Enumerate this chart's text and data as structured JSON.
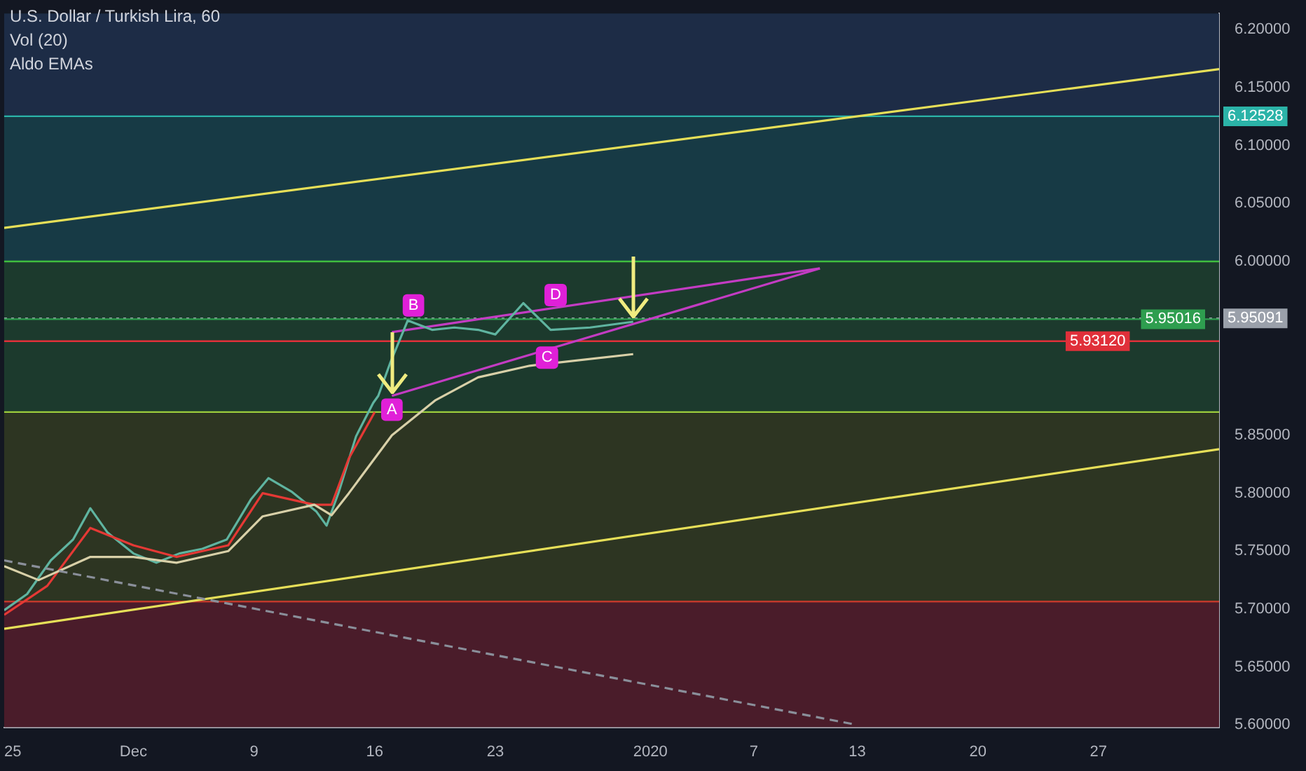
{
  "chart_data": {
    "type": "line",
    "title": "U.S. Dollar / Turkish Lira, 60",
    "annotations": [
      "Vol (20)",
      "Aldo EMAs",
      {
        "text": "A",
        "x": "2019-12-17",
        "y": 5.872
      },
      {
        "text": "B",
        "x": "2019-12-18T06:00",
        "y": 5.962
      },
      {
        "text": "C",
        "x": "2019-12-26",
        "y": 5.917
      },
      {
        "text": "D",
        "x": "2019-12-26T12:00",
        "y": 5.971
      }
    ],
    "xlim": [
      "2019-11-24T12:00",
      "2020-02-03"
    ],
    "xticks": [
      {
        "value": "2019-11-25",
        "label": "25"
      },
      {
        "value": "2019-12-02",
        "label": "Dec"
      },
      {
        "value": "2019-12-09",
        "label": "9"
      },
      {
        "value": "2019-12-16",
        "label": "16"
      },
      {
        "value": "2019-12-23",
        "label": "23"
      },
      {
        "value": "2020-01-01",
        "label": "2020"
      },
      {
        "value": "2020-01-07",
        "label": "7"
      },
      {
        "value": "2020-01-13",
        "label": "13"
      },
      {
        "value": "2020-01-20",
        "label": "20"
      },
      {
        "value": "2020-01-27",
        "label": "27"
      }
    ],
    "ylim": [
      5.598,
      6.214
    ],
    "yticks": [
      {
        "value": 5.6,
        "label": "5.60000"
      },
      {
        "value": 5.65,
        "label": "5.65000"
      },
      {
        "value": 5.7,
        "label": "5.70000"
      },
      {
        "value": 5.75,
        "label": "5.75000"
      },
      {
        "value": 5.8,
        "label": "5.80000"
      },
      {
        "value": 5.85,
        "label": "5.85000"
      },
      {
        "value": 6.0,
        "label": "6.00000"
      },
      {
        "value": 6.05,
        "label": "6.05000"
      },
      {
        "value": 6.1,
        "label": "6.10000"
      },
      {
        "value": 6.15,
        "label": "6.15000"
      },
      {
        "value": 6.2,
        "label": "6.20000"
      }
    ],
    "grid": false,
    "legend": false,
    "marker": "none",
    "bands": [
      {
        "axis": "y",
        "from": 6.12528,
        "to": 6.214,
        "color": "#1d2c46"
      },
      {
        "axis": "y",
        "from": 6.0,
        "to": 6.12528,
        "color": "#173a45"
      },
      {
        "axis": "y",
        "from": 5.87,
        "to": 6.0,
        "color": "#1c3a2d"
      },
      {
        "axis": "y",
        "from": 5.7065,
        "to": 5.87,
        "color": "#2d3522"
      },
      {
        "axis": "y",
        "from": 5.598,
        "to": 5.7065,
        "color": "#4a1c2a"
      }
    ],
    "ref_lines": [
      {
        "axis": "y",
        "value": 6.12528,
        "label": "6.12528",
        "color": "#2bb3a8"
      },
      {
        "axis": "y",
        "value": 6.0,
        "color": "#3fbf3f"
      },
      {
        "axis": "y",
        "value": 5.95091,
        "label": "5.95091",
        "color": "#9aa0aa",
        "line_style": "dotted"
      },
      {
        "axis": "y",
        "value": 5.95016,
        "label": "5.95016",
        "color": "#2e9e4f"
      },
      {
        "axis": "y",
        "value": 5.9312,
        "label": "5.93120",
        "color": "#e0303a"
      },
      {
        "axis": "y",
        "value": 5.87,
        "color": "#9ccc3c"
      },
      {
        "axis": "y",
        "value": 5.7065,
        "color": "#c0392b"
      }
    ],
    "series": [
      {
        "color": "#8a8f9a",
        "line_style": "dashed",
        "x": [
          "2019-11-24T12:00",
          "2020-01-13"
        ],
        "values": [
          5.742,
          5.6
        ]
      },
      {
        "color": "#e6df58",
        "x": [
          "2019-11-24T12:00",
          "2020-02-03"
        ],
        "values": [
          6.029,
          6.166
        ]
      },
      {
        "color": "#e6df58",
        "x": [
          "2019-11-24T12:00",
          "2020-02-03"
        ],
        "values": [
          5.683,
          5.838
        ]
      },
      {
        "color": "#d8d0a8",
        "x": [
          "2019-11-24T12:00",
          "2019-11-26T12:00",
          "2019-11-29T12:00",
          "2019-12-02",
          "2019-12-04T12:00",
          "2019-12-07T12:00",
          "2019-12-09T12:00",
          "2019-12-12T12:00",
          "2019-12-13T12:00",
          "2019-12-14T12:00",
          "2019-12-17",
          "2019-12-19T12:00",
          "2019-12-22",
          "2019-12-25",
          "2019-12-31"
        ],
        "values": [
          5.737,
          5.725,
          5.745,
          5.745,
          5.74,
          5.75,
          5.78,
          5.79,
          5.781,
          5.8,
          5.85,
          5.88,
          5.9,
          5.91,
          5.92
        ]
      },
      {
        "color": "#e53935",
        "x": [
          "2019-11-24T12:00",
          "2019-11-27",
          "2019-11-29T12:00",
          "2019-12-02",
          "2019-12-04T12:00",
          "2019-12-07T12:00",
          "2019-12-09T12:00",
          "2019-12-12T12:00",
          "2019-12-13T12:00",
          "2019-12-14T12:00",
          "2019-12-16"
        ],
        "values": [
          5.695,
          5.72,
          5.77,
          5.755,
          5.745,
          5.755,
          5.8,
          5.79,
          5.79,
          5.83,
          5.87
        ]
      },
      {
        "color": "#5fb4a0",
        "x": [
          "2019-11-24T12:00",
          "2019-11-25T20:00",
          "2019-11-27T05:00",
          "2019-11-28T12:00",
          "2019-11-29T12:00",
          "2019-11-30T12:00",
          "2019-12-02",
          "2019-12-03T08:00",
          "2019-12-04T16:00",
          "2019-12-06",
          "2019-12-07T10:00",
          "2019-12-08T20:00",
          "2019-12-09T20:00",
          "2019-12-11T05:00",
          "2019-12-12T15:00",
          "2019-12-13T05:00",
          "2019-12-13T22:00",
          "2019-12-14T22:00",
          "2019-12-15T22:00",
          "2019-12-16T05:00",
          "2019-12-16T22:00",
          "2019-12-17T22:00",
          "2019-12-19T08:00",
          "2019-12-20T15:00",
          "2019-12-22",
          "2019-12-23",
          "2019-12-24T15:00",
          "2019-12-26T05:00",
          "2019-12-28T12:00",
          "2019-12-31"
        ],
        "values": [
          5.699,
          5.713,
          5.742,
          5.76,
          5.787,
          5.766,
          5.748,
          5.74,
          5.748,
          5.752,
          5.76,
          5.795,
          5.813,
          5.801,
          5.784,
          5.772,
          5.801,
          5.849,
          5.878,
          5.884,
          5.913,
          5.949,
          5.941,
          5.943,
          5.941,
          5.937,
          5.964,
          5.941,
          5.943,
          5.948
        ]
      },
      {
        "color": "#c33cc3",
        "x": [
          "2019-12-17",
          "2020-01-10T20:00"
        ],
        "values": [
          5.884,
          5.994
        ]
      },
      {
        "color": "#c33cc3",
        "x": [
          "2019-12-17",
          "2020-01-10T20:00"
        ],
        "values": [
          5.939,
          5.994
        ]
      }
    ]
  }
}
